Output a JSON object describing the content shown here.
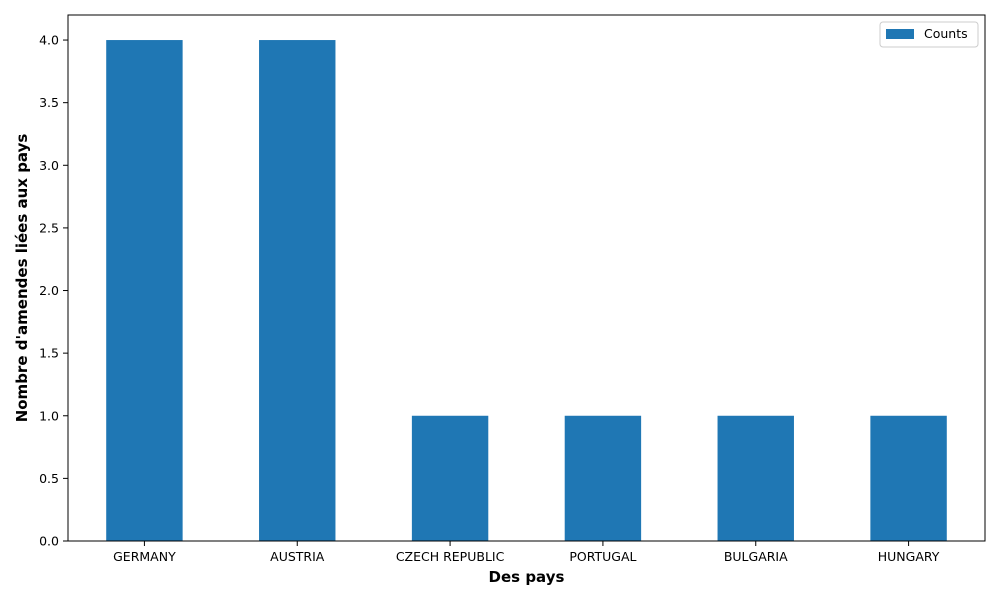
{
  "chart_data": {
    "type": "bar",
    "categories": [
      "GERMANY",
      "AUSTRIA",
      "CZECH REPUBLIC",
      "PORTUGAL",
      "BULGARIA",
      "HUNGARY"
    ],
    "series": [
      {
        "name": "Counts",
        "values": [
          4,
          4,
          1,
          1,
          1,
          1
        ],
        "color": "#1f77b4"
      }
    ],
    "xlabel": "Des pays",
    "ylabel": "Nombre d'amendes liées aux pays",
    "ylim": [
      0,
      4.2
    ],
    "yticks": [
      0.0,
      0.5,
      1.0,
      1.5,
      2.0,
      2.5,
      3.0,
      3.5,
      4.0
    ],
    "ytick_labels": [
      "0.0",
      "0.5",
      "1.0",
      "1.5",
      "2.0",
      "2.5",
      "3.0",
      "3.5",
      "4.0"
    ],
    "grid": false,
    "legend_position": "top-right"
  }
}
